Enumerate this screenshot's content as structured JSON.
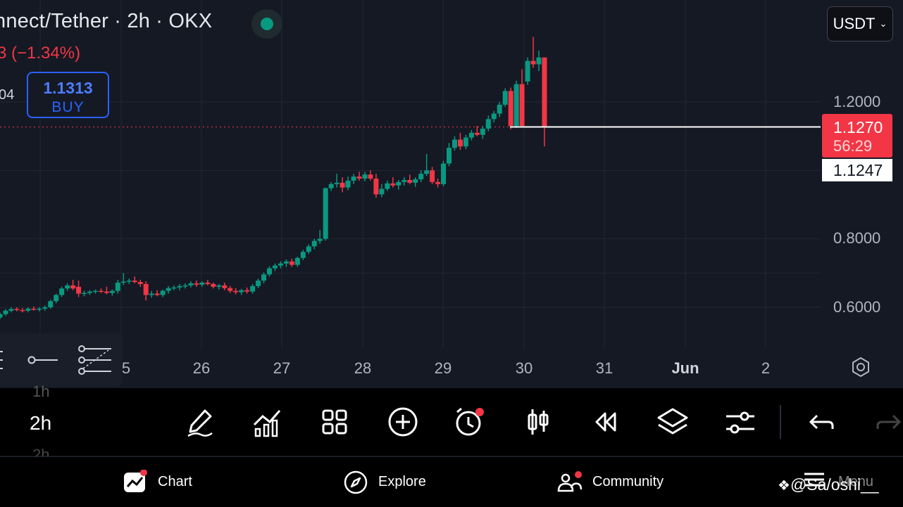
{
  "header": {
    "title": "nnect/Tether · 2h · OKX",
    "change": "3 (−1.34%)",
    "side_value": "04",
    "buy_price": "1.1313",
    "buy_label": "BUY",
    "currency": "USDT"
  },
  "price_axis": {
    "labels": [
      "1.2000",
      "0.8000",
      "0.6000"
    ],
    "last_price": "1.1270",
    "countdown": "56:29",
    "crosshair_price": "1.1247"
  },
  "time_axis": {
    "labels": [
      "5",
      "26",
      "27",
      "28",
      "29",
      "30",
      "31",
      "Jun",
      "2"
    ]
  },
  "timeframes": {
    "above": "1h",
    "selected": "2h",
    "below": "2h"
  },
  "toolbar": {
    "icons": [
      "pen-icon",
      "indicators-icon",
      "grid-icon",
      "add-icon",
      "alarm-icon",
      "candles-icon",
      "replay-icon",
      "layers-icon",
      "settings-sliders-icon",
      "undo-icon",
      "redo-icon"
    ]
  },
  "bottom_nav": {
    "chart": "Chart",
    "explore": "Explore",
    "community": "Community",
    "menu": "Menu",
    "watermark": "@Sa/oshi__"
  },
  "colors": {
    "up": "#089981",
    "down": "#f23645",
    "accent": "#2962ff",
    "background": "#151924"
  },
  "chart_data": {
    "type": "candlestick",
    "y_axis_labels": [
      1.2,
      0.8,
      0.6
    ],
    "last_price": 1.127,
    "crosshair_price": 1.1247,
    "candles": [
      [
        0.57,
        0.585,
        0.565,
        0.58
      ],
      [
        0.58,
        0.595,
        0.575,
        0.59
      ],
      [
        0.59,
        0.6,
        0.585,
        0.595
      ],
      [
        0.595,
        0.6,
        0.588,
        0.592
      ],
      [
        0.592,
        0.598,
        0.585,
        0.59
      ],
      [
        0.59,
        0.6,
        0.585,
        0.596
      ],
      [
        0.596,
        0.602,
        0.59,
        0.594
      ],
      [
        0.594,
        0.6,
        0.588,
        0.596
      ],
      [
        0.596,
        0.605,
        0.59,
        0.6
      ],
      [
        0.6,
        0.622,
        0.596,
        0.618
      ],
      [
        0.618,
        0.64,
        0.612,
        0.636
      ],
      [
        0.636,
        0.66,
        0.63,
        0.655
      ],
      [
        0.655,
        0.67,
        0.648,
        0.664
      ],
      [
        0.664,
        0.68,
        0.65,
        0.655
      ],
      [
        0.66,
        0.678,
        0.63,
        0.64
      ],
      [
        0.64,
        0.648,
        0.632,
        0.642
      ],
      [
        0.642,
        0.65,
        0.636,
        0.646
      ],
      [
        0.646,
        0.652,
        0.64,
        0.648
      ],
      [
        0.648,
        0.655,
        0.642,
        0.646
      ],
      [
        0.646,
        0.66,
        0.638,
        0.642
      ],
      [
        0.642,
        0.652,
        0.634,
        0.648
      ],
      [
        0.648,
        0.68,
        0.64,
        0.672
      ],
      [
        0.672,
        0.7,
        0.665,
        0.675
      ],
      [
        0.675,
        0.684,
        0.668,
        0.678
      ],
      [
        0.678,
        0.69,
        0.67,
        0.674
      ],
      [
        0.674,
        0.68,
        0.66,
        0.668
      ],
      [
        0.668,
        0.676,
        0.62,
        0.636
      ],
      [
        0.636,
        0.648,
        0.628,
        0.64
      ],
      [
        0.64,
        0.65,
        0.632,
        0.636
      ],
      [
        0.636,
        0.652,
        0.63,
        0.648
      ],
      [
        0.648,
        0.662,
        0.64,
        0.656
      ],
      [
        0.656,
        0.664,
        0.65,
        0.658
      ],
      [
        0.658,
        0.668,
        0.65,
        0.662
      ],
      [
        0.662,
        0.67,
        0.655,
        0.664
      ],
      [
        0.664,
        0.676,
        0.658,
        0.67
      ],
      [
        0.67,
        0.678,
        0.66,
        0.666
      ],
      [
        0.666,
        0.676,
        0.66,
        0.672
      ],
      [
        0.672,
        0.68,
        0.664,
        0.668
      ],
      [
        0.668,
        0.672,
        0.655,
        0.66
      ],
      [
        0.66,
        0.668,
        0.652,
        0.664
      ],
      [
        0.664,
        0.672,
        0.65,
        0.656
      ],
      [
        0.656,
        0.662,
        0.642,
        0.648
      ],
      [
        0.648,
        0.656,
        0.638,
        0.644
      ],
      [
        0.644,
        0.654,
        0.636,
        0.65
      ],
      [
        0.65,
        0.658,
        0.64,
        0.646
      ],
      [
        0.646,
        0.668,
        0.64,
        0.662
      ],
      [
        0.662,
        0.684,
        0.656,
        0.678
      ],
      [
        0.678,
        0.702,
        0.67,
        0.696
      ],
      [
        0.696,
        0.72,
        0.69,
        0.714
      ],
      [
        0.714,
        0.728,
        0.706,
        0.722
      ],
      [
        0.722,
        0.734,
        0.714,
        0.728
      ],
      [
        0.728,
        0.74,
        0.718,
        0.734
      ],
      [
        0.734,
        0.742,
        0.718,
        0.724
      ],
      [
        0.724,
        0.748,
        0.718,
        0.744
      ],
      [
        0.744,
        0.768,
        0.738,
        0.762
      ],
      [
        0.762,
        0.784,
        0.756,
        0.778
      ],
      [
        0.778,
        0.8,
        0.77,
        0.794
      ],
      [
        0.794,
        0.826,
        0.786,
        0.8
      ],
      [
        0.8,
        0.95,
        0.795,
        0.948
      ],
      [
        0.948,
        0.966,
        0.94,
        0.96
      ],
      [
        0.96,
        0.99,
        0.95,
        0.964
      ],
      [
        0.964,
        0.98,
        0.936,
        0.95
      ],
      [
        0.95,
        0.982,
        0.942,
        0.97
      ],
      [
        0.97,
        0.99,
        0.96,
        0.982
      ],
      [
        0.982,
        0.996,
        0.97,
        0.976
      ],
      [
        0.976,
        0.996,
        0.968,
        0.988
      ],
      [
        0.988,
        1.0,
        0.97,
        0.976
      ],
      [
        0.976,
        0.99,
        0.92,
        0.93
      ],
      [
        0.93,
        0.96,
        0.922,
        0.946
      ],
      [
        0.946,
        0.97,
        0.94,
        0.962
      ],
      [
        0.962,
        0.98,
        0.95,
        0.956
      ],
      [
        0.956,
        0.972,
        0.944,
        0.966
      ],
      [
        0.966,
        0.98,
        0.956,
        0.972
      ],
      [
        0.972,
        0.988,
        0.96,
        0.964
      ],
      [
        0.964,
        0.98,
        0.952,
        0.974
      ],
      [
        0.974,
        1.0,
        0.966,
        0.99
      ],
      [
        0.99,
        1.048,
        0.984,
        1.0
      ],
      [
        1.0,
        1.01,
        0.96,
        0.966
      ],
      [
        0.966,
        0.976,
        0.95,
        0.96
      ],
      [
        0.96,
        1.028,
        0.954,
        1.02
      ],
      [
        1.02,
        1.08,
        1.012,
        1.066
      ],
      [
        1.066,
        1.1,
        1.058,
        1.09
      ],
      [
        1.09,
        1.11,
        1.06,
        1.07
      ],
      [
        1.07,
        1.104,
        1.062,
        1.096
      ],
      [
        1.096,
        1.118,
        1.088,
        1.11
      ],
      [
        1.11,
        1.13,
        1.1,
        1.104
      ],
      [
        1.104,
        1.13,
        1.092,
        1.122
      ],
      [
        1.122,
        1.16,
        1.114,
        1.15
      ],
      [
        1.15,
        1.174,
        1.14,
        1.166
      ],
      [
        1.166,
        1.2,
        1.156,
        1.192
      ],
      [
        1.192,
        1.24,
        1.186,
        1.232
      ],
      [
        1.232,
        1.242,
        1.12,
        1.13
      ],
      [
        1.13,
        1.262,
        1.124,
        1.252
      ],
      [
        1.252,
        1.296,
        1.128,
        1.13
      ],
      [
        1.26,
        1.33,
        1.25,
        1.32
      ],
      [
        1.32,
        1.39,
        1.3,
        1.31
      ],
      [
        1.31,
        1.35,
        1.29,
        1.33
      ],
      [
        1.33,
        1.33,
        1.07,
        1.127
      ]
    ]
  }
}
